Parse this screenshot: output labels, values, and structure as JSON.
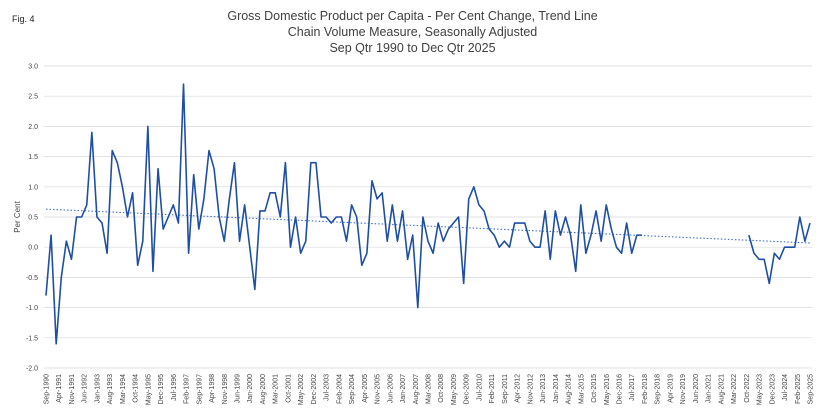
{
  "figure_label": "Fig. 4",
  "chart_data": {
    "type": "line",
    "title": "Gross Domestic Product per Capita - Per Cent Change, Trend Line",
    "subtitle_1": "Chain Volume Measure, Seasonally Adjusted",
    "subtitle_2": "Sep Qtr 1990 to Dec Qtr 2025",
    "xlabel": "",
    "ylabel": "Per Cent",
    "ylim": [
      -2.0,
      3.0
    ],
    "yticks": [
      "3.0",
      "2.5",
      "2.0",
      "1.5",
      "1.0",
      "0.5",
      "0.0",
      "-0.5",
      "-1.0",
      "-1.5",
      "-2.0"
    ],
    "grid": true,
    "legend": "none",
    "colors": {
      "series": "#1f4fa3",
      "grid": "#d9d9d9",
      "trend": "#3f6fc4"
    },
    "x_labels": [
      "Sep-1990",
      "Apr-1991",
      "Nov-1991",
      "Jun-1992",
      "Jan-1993",
      "Aug-1993",
      "Mar-1994",
      "Oct-1994",
      "May-1995",
      "Dec-1995",
      "Jul-1996",
      "Feb-1997",
      "Sep-1997",
      "Apr-1998",
      "Nov-1998",
      "Jun-1999",
      "Jan-2000",
      "Aug-2000",
      "Mar-2001",
      "Oct-2001",
      "May-2002",
      "Dec-2002",
      "Jul-2003",
      "Feb-2004",
      "Sep-2004",
      "Apr-2005",
      "Nov-2005",
      "Jun-2006",
      "Jan-2007",
      "Aug-2007",
      "Mar-2008",
      "Oct-2008",
      "May-2009",
      "Dec-2009",
      "Jul-2010",
      "Feb-2011",
      "Sep-2011",
      "Apr-2012",
      "Nov-2012",
      "Jun-2013",
      "Jan-2014",
      "Aug-2014",
      "Mar-2015",
      "Oct-2015",
      "May-2016",
      "Dec-2016",
      "Jul-2017",
      "Feb-2018",
      "Sep-2018",
      "Apr-2019",
      "Nov-2019",
      "Jun-2020",
      "Jan-2021",
      "Aug-2021",
      "Mar-2022",
      "Oct-2022",
      "May-2023",
      "Dec-2023",
      "Jul-2024",
      "Feb-2025",
      "Sep-2025"
    ],
    "series": [
      {
        "name": "",
        "values": [
          -0.8,
          0.2,
          -1.6,
          -0.5,
          0.1,
          -0.2,
          0.5,
          0.5,
          0.7,
          1.9,
          0.5,
          0.4,
          -0.1,
          1.6,
          1.4,
          1.0,
          0.5,
          0.9,
          -0.3,
          0.1,
          2.0,
          -0.4,
          1.3,
          0.3,
          0.5,
          0.7,
          0.4,
          2.7,
          -0.1,
          1.2,
          0.3,
          0.8,
          1.6,
          1.3,
          0.5,
          0.1,
          0.8,
          1.4,
          0.1,
          0.7,
          0.0,
          -0.7,
          0.6,
          0.6,
          0.9,
          0.9,
          0.5,
          1.4,
          0.0,
          0.5,
          -0.1,
          0.1,
          1.4,
          1.4,
          0.5,
          0.5,
          0.4,
          0.5,
          0.5,
          0.1,
          0.7,
          0.5,
          -0.3,
          -0.1,
          1.1,
          0.8,
          0.9,
          0.1,
          0.7,
          0.1,
          0.6,
          -0.2,
          0.2,
          -1.0,
          0.5,
          0.1,
          -0.1,
          0.4,
          0.1,
          0.3,
          0.4,
          0.5,
          -0.6,
          0.8,
          1.0,
          0.7,
          0.6,
          0.3,
          0.2,
          0.0,
          0.1,
          0.0,
          0.4,
          0.4,
          0.4,
          0.1,
          0.0,
          0.0,
          0.6,
          -0.2,
          0.6,
          0.2,
          0.5,
          0.2,
          -0.4,
          0.7,
          -0.1,
          0.2,
          0.6,
          0.1,
          0.7,
          0.3,
          0.0,
          -0.1,
          0.4,
          -0.1,
          0.2,
          0.2,
          null,
          null,
          null,
          null,
          null,
          null,
          null,
          null,
          null,
          null,
          null,
          null,
          null,
          null,
          null,
          null,
          null,
          null,
          null,
          null,
          0.2,
          -0.1,
          -0.2,
          -0.2,
          -0.6,
          -0.1,
          -0.2,
          0.0,
          0.0,
          0.0,
          0.5,
          0.1,
          0.4
        ]
      }
    ],
    "trend_line": {
      "start": 0.63,
      "end": 0.07
    }
  }
}
